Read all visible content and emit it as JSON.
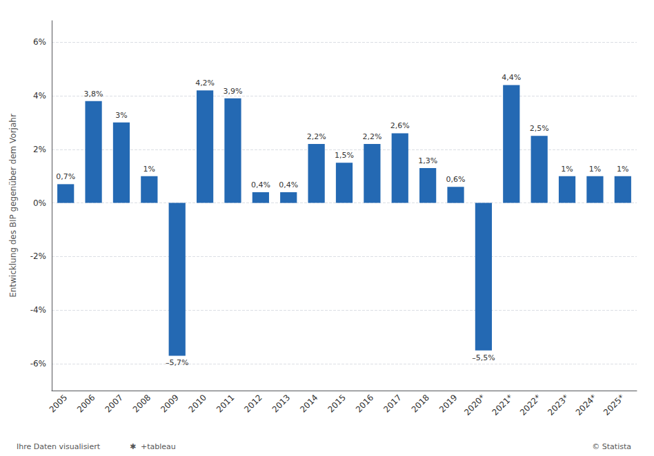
{
  "chart_data": {
    "type": "bar",
    "categories": [
      "2005",
      "2006",
      "2007",
      "2008",
      "2009",
      "2010",
      "2011",
      "2012",
      "2013",
      "2014",
      "2015",
      "2016",
      "2017",
      "2018",
      "2019",
      "2020*",
      "2021*",
      "2022*",
      "2023*",
      "2024*",
      "2025*"
    ],
    "values": [
      0.7,
      3.8,
      3.0,
      1.0,
      -5.7,
      4.2,
      3.9,
      0.4,
      0.4,
      2.2,
      1.5,
      2.2,
      2.6,
      1.3,
      0.6,
      -5.5,
      4.4,
      2.5,
      1.0,
      1.0,
      1.0
    ],
    "value_labels": [
      "0,7%",
      "3,8%",
      "3%",
      "1%",
      "–5,7%",
      "4,2%",
      "3,9%",
      "0,4%",
      "0,4%",
      "2,2%",
      "1,5%",
      "2,2%",
      "2,6%",
      "1,3%",
      "0,6%",
      "–5,5%",
      "4,4%",
      "2,5%",
      "1%",
      "1%",
      "1%"
    ],
    "color": "#2469b3",
    "ylabel": "Entwicklung des BIP gegenüber dem Vorjahr",
    "ylim": [
      -7.0,
      6.8
    ],
    "yticks": [
      {
        "value": -6,
        "label": "-6%"
      },
      {
        "value": -4,
        "label": "-4%"
      },
      {
        "value": -2,
        "label": "-2%"
      },
      {
        "value": 0,
        "label": "0%"
      },
      {
        "value": 2,
        "label": "2%"
      },
      {
        "value": 4,
        "label": "4%"
      },
      {
        "value": 6,
        "label": "6%"
      }
    ],
    "grid": true,
    "data_labels": true,
    "annotations": [
      "Ihre Daten visualisiert",
      "© Statista",
      "✱",
      "+tableau"
    ]
  }
}
